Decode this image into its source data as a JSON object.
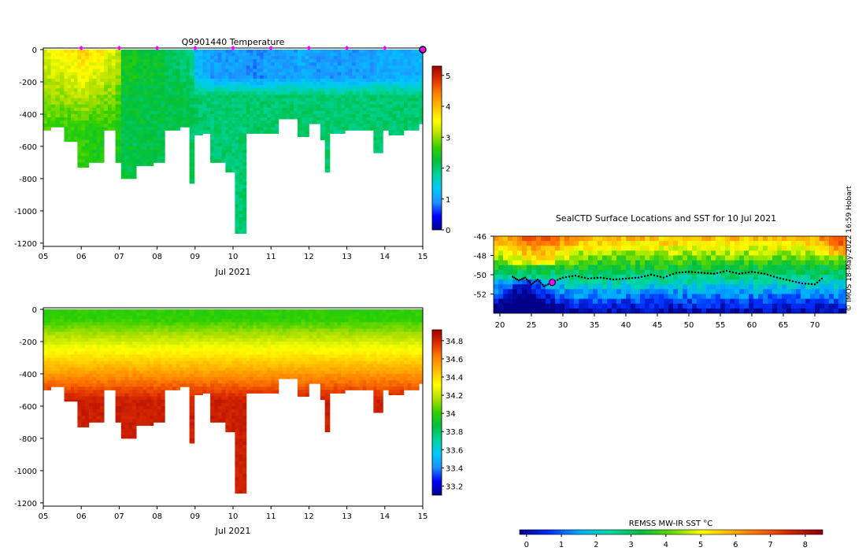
{
  "colors": {
    "temperature_stops": [
      "#00008b",
      "#0000ff",
      "#1e90ff",
      "#00c8ff",
      "#00d4a0",
      "#00c040",
      "#30d000",
      "#b0e000",
      "#ffff00",
      "#ffc000",
      "#ff8000",
      "#e03000",
      "#a00000"
    ],
    "sst_stops": [
      "#00008b",
      "#0030ff",
      "#00b0ff",
      "#00d8a0",
      "#00c040",
      "#60d800",
      "#ffff00",
      "#ffb000",
      "#ff6000",
      "#d02000",
      "#8b0000"
    ],
    "marker": "#ff00ff"
  },
  "chart_data": [
    {
      "id": "temperature",
      "type": "heatmap",
      "title": "Q9901440  Temperature",
      "xlabel": "Jul 2021",
      "ylabel": "",
      "xlim": [
        5,
        15
      ],
      "ylim": [
        -1220,
        0
      ],
      "xticks": [
        "05",
        "06",
        "07",
        "08",
        "09",
        "10",
        "11",
        "12",
        "13",
        "14",
        "15"
      ],
      "yticks": [
        0,
        -200,
        -400,
        -600,
        -800,
        -1000,
        -1200
      ],
      "colorbar_range": [
        0,
        5.3
      ],
      "colorbar_ticks": [
        0,
        1,
        2,
        3,
        4,
        5
      ],
      "marker_days": [
        6,
        7,
        8,
        9,
        10,
        11,
        12,
        13,
        14
      ],
      "profiles": [
        {
          "day": 5.0,
          "depth": 500,
          "surface": 3.4,
          "deep": 2.7
        },
        {
          "day": 5.2,
          "depth": 480,
          "surface": 3.6,
          "deep": 2.6
        },
        {
          "day": 5.55,
          "depth": 570,
          "surface": 3.7,
          "deep": 2.6
        },
        {
          "day": 5.9,
          "depth": 730,
          "surface": 3.9,
          "deep": 2.6
        },
        {
          "day": 6.2,
          "depth": 700,
          "surface": 3.7,
          "deep": 2.5
        },
        {
          "day": 6.6,
          "depth": 500,
          "surface": 3.4,
          "deep": 2.6
        },
        {
          "day": 6.9,
          "depth": 700,
          "surface": 3.2,
          "deep": 2.5
        },
        {
          "day": 7.05,
          "depth": 800,
          "surface": 2.4,
          "deep": 2.2
        },
        {
          "day": 7.45,
          "depth": 720,
          "surface": 2.3,
          "deep": 2.2
        },
        {
          "day": 7.9,
          "depth": 700,
          "surface": 2.3,
          "deep": 2.2
        },
        {
          "day": 8.2,
          "depth": 500,
          "surface": 2.1,
          "deep": 2.2
        },
        {
          "day": 8.6,
          "depth": 480,
          "surface": 2.0,
          "deep": 2.2
        },
        {
          "day": 8.85,
          "depth": 830,
          "surface": 1.9,
          "deep": 2.1
        },
        {
          "day": 8.98,
          "depth": 530,
          "surface": 1.2,
          "deep": 2.0
        },
        {
          "day": 9.2,
          "depth": 520,
          "surface": 1.1,
          "deep": 2.0
        },
        {
          "day": 9.4,
          "depth": 700,
          "surface": 1.0,
          "deep": 2.0
        },
        {
          "day": 9.8,
          "depth": 760,
          "surface": 1.0,
          "deep": 2.0
        },
        {
          "day": 10.05,
          "depth": 1140,
          "surface": 1.0,
          "deep": 2.0
        },
        {
          "day": 10.35,
          "depth": 520,
          "surface": 0.9,
          "deep": 2.0
        },
        {
          "day": 10.8,
          "depth": 520,
          "surface": 1.0,
          "deep": 2.0
        },
        {
          "day": 11.2,
          "depth": 430,
          "surface": 1.0,
          "deep": 2.0
        },
        {
          "day": 11.7,
          "depth": 540,
          "surface": 1.1,
          "deep": 2.0
        },
        {
          "day": 12.0,
          "depth": 460,
          "surface": 1.0,
          "deep": 2.0
        },
        {
          "day": 12.3,
          "depth": 560,
          "surface": 1.0,
          "deep": 2.0
        },
        {
          "day": 12.42,
          "depth": 760,
          "surface": 1.0,
          "deep": 2.0
        },
        {
          "day": 12.55,
          "depth": 520,
          "surface": 1.0,
          "deep": 2.0
        },
        {
          "day": 12.95,
          "depth": 500,
          "surface": 1.0,
          "deep": 2.0
        },
        {
          "day": 13.7,
          "depth": 640,
          "surface": 1.1,
          "deep": 2.0
        },
        {
          "day": 13.95,
          "depth": 500,
          "surface": 1.1,
          "deep": 2.0
        },
        {
          "day": 14.1,
          "depth": 530,
          "surface": 1.1,
          "deep": 2.0
        },
        {
          "day": 14.5,
          "depth": 500,
          "surface": 1.1,
          "deep": 2.0
        },
        {
          "day": 14.9,
          "depth": 460,
          "surface": 1.2,
          "deep": 2.0
        }
      ]
    },
    {
      "id": "salinity",
      "type": "heatmap",
      "title": "",
      "xlabel": "Jul 2021",
      "ylabel": "",
      "xlim": [
        5,
        15
      ],
      "ylim": [
        -1220,
        0
      ],
      "xticks": [
        "05",
        "06",
        "07",
        "08",
        "09",
        "10",
        "11",
        "12",
        "13",
        "14",
        "15"
      ],
      "yticks": [
        0,
        -200,
        -400,
        -600,
        -800,
        -1000,
        -1200
      ],
      "colorbar_range": [
        33.1,
        34.92
      ],
      "colorbar_ticks": [
        33.2,
        33.4,
        33.6,
        33.8,
        34,
        34.2,
        34.4,
        34.6,
        34.8
      ],
      "surface_value": 34.0,
      "deep_value": 34.82
    },
    {
      "id": "sst_map",
      "type": "heatmap",
      "title": "SealCTD Surface Locations and SST for 10 Jul 2021",
      "xlabel": "",
      "ylabel": "",
      "xlim": [
        19,
        75
      ],
      "ylim": [
        -54,
        -46
      ],
      "xticks": [
        20,
        25,
        30,
        35,
        40,
        45,
        50,
        55,
        60,
        65,
        70
      ],
      "yticks": [
        -46,
        -48,
        -50,
        -52
      ],
      "colorbar_label": "REMSS MW-IR SST °C",
      "colorbar_range": [
        -0.2,
        8.5
      ],
      "colorbar_ticks": [
        0,
        1,
        2,
        3,
        4,
        5,
        6,
        7,
        8
      ],
      "current_position": {
        "lon": 28.3,
        "lat": -50.8
      },
      "track": [
        {
          "lon": 22.0,
          "lat": -50.2
        },
        {
          "lon": 23.0,
          "lat": -50.6
        },
        {
          "lon": 24.0,
          "lat": -50.3
        },
        {
          "lon": 25.0,
          "lat": -51.0
        },
        {
          "lon": 26.0,
          "lat": -50.5
        },
        {
          "lon": 27.0,
          "lat": -51.2
        },
        {
          "lon": 28.3,
          "lat": -50.8
        },
        {
          "lon": 30.0,
          "lat": -50.3
        },
        {
          "lon": 32.0,
          "lat": -50.1
        },
        {
          "lon": 34.0,
          "lat": -50.4
        },
        {
          "lon": 36.0,
          "lat": -50.3
        },
        {
          "lon": 38.0,
          "lat": -50.5
        },
        {
          "lon": 40.0,
          "lat": -50.4
        },
        {
          "lon": 42.0,
          "lat": -50.3
        },
        {
          "lon": 44.0,
          "lat": -50.0
        },
        {
          "lon": 46.0,
          "lat": -50.3
        },
        {
          "lon": 48.0,
          "lat": -49.8
        },
        {
          "lon": 50.0,
          "lat": -49.7
        },
        {
          "lon": 52.0,
          "lat": -49.8
        },
        {
          "lon": 54.0,
          "lat": -49.9
        },
        {
          "lon": 56.0,
          "lat": -49.6
        },
        {
          "lon": 58.0,
          "lat": -49.9
        },
        {
          "lon": 60.0,
          "lat": -49.7
        },
        {
          "lon": 62.0,
          "lat": -49.9
        },
        {
          "lon": 64.0,
          "lat": -50.3
        },
        {
          "lon": 66.0,
          "lat": -50.6
        },
        {
          "lon": 68.0,
          "lat": -50.9
        },
        {
          "lon": 70.0,
          "lat": -51.0
        },
        {
          "lon": 71.5,
          "lat": -50.2
        }
      ]
    }
  ],
  "credit": "© IMOS 18-May-2022 16:59 Hobart"
}
